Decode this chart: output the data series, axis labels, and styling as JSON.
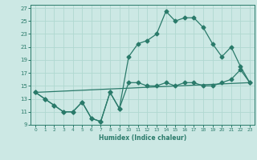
{
  "title": "",
  "xlabel": "Humidex (Indice chaleur)",
  "background_color": "#cce8e4",
  "grid_color": "#b0d8d0",
  "line_color": "#2a7a6a",
  "xlim": [
    -0.5,
    23.5
  ],
  "ylim": [
    9,
    27.5
  ],
  "xticks": [
    0,
    1,
    2,
    3,
    4,
    5,
    6,
    7,
    8,
    9,
    10,
    11,
    12,
    13,
    14,
    15,
    16,
    17,
    18,
    19,
    20,
    21,
    22,
    23
  ],
  "yticks": [
    9,
    11,
    13,
    15,
    17,
    19,
    21,
    23,
    25,
    27
  ],
  "line1_x": [
    0,
    1,
    2,
    3,
    4,
    5,
    6,
    7,
    8,
    9,
    10,
    11,
    12,
    13,
    14,
    15,
    16,
    17,
    18,
    19,
    20,
    21,
    22,
    23
  ],
  "line1_y": [
    14.0,
    13.0,
    12.0,
    11.0,
    11.0,
    12.5,
    10.0,
    9.5,
    14.0,
    11.5,
    15.5,
    15.5,
    15.0,
    15.0,
    15.5,
    15.0,
    15.5,
    15.5,
    15.0,
    15.0,
    15.5,
    16.0,
    17.5,
    15.5
  ],
  "line2_x": [
    0,
    1,
    2,
    3,
    4,
    5,
    6,
    7,
    8,
    9,
    10,
    11,
    12,
    13,
    14,
    15,
    16,
    17,
    18,
    19,
    20,
    21,
    22,
    23
  ],
  "line2_y": [
    14.0,
    13.0,
    12.0,
    11.0,
    11.0,
    12.5,
    10.0,
    9.5,
    14.0,
    11.5,
    19.5,
    21.5,
    22.0,
    23.0,
    26.5,
    25.0,
    25.5,
    25.5,
    24.0,
    21.5,
    19.5,
    21.0,
    18.0,
    15.5
  ],
  "line3_x": [
    0,
    23
  ],
  "line3_y": [
    14.0,
    15.5
  ],
  "markersize": 2.5,
  "linewidth": 0.9
}
